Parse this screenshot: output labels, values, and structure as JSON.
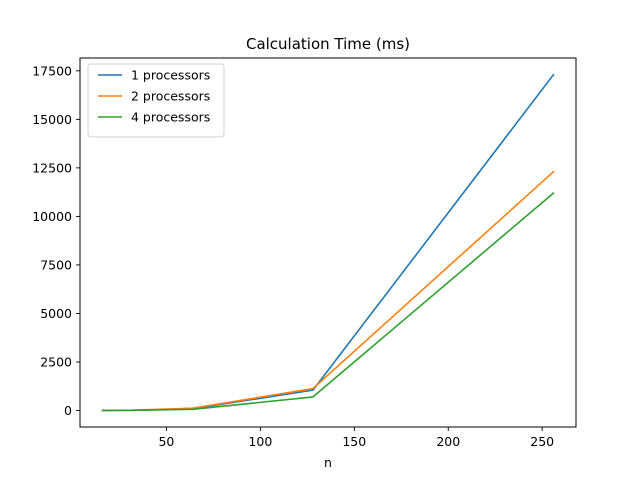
{
  "chart_data": {
    "type": "line",
    "title": "Calculation Time (ms)",
    "xlabel": "n",
    "ylabel": "",
    "x": [
      16,
      32,
      64,
      128,
      256
    ],
    "xlim": [
      4,
      268
    ],
    "ylim": [
      -850,
      18160
    ],
    "xticks": [
      50,
      100,
      150,
      200,
      250
    ],
    "yticks": [
      0,
      2500,
      5000,
      7500,
      10000,
      12500,
      15000,
      17500
    ],
    "grid": false,
    "legend_position": "top-left",
    "series": [
      {
        "name": "1 processors",
        "color": "#1f77b4",
        "values": [
          2,
          12,
          90,
          1050,
          17300
        ]
      },
      {
        "name": "2 processors",
        "color": "#ff7f0e",
        "values": [
          2,
          15,
          120,
          1130,
          12300
        ]
      },
      {
        "name": "4 processors",
        "color": "#2ca02c",
        "values": [
          2,
          10,
          60,
          700,
          11200
        ]
      }
    ]
  }
}
